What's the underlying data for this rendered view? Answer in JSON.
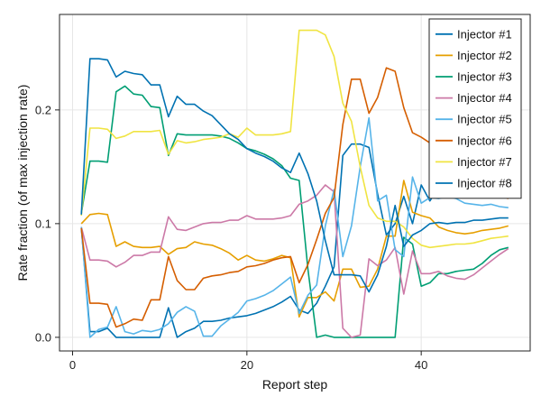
{
  "chart_data": {
    "type": "line",
    "xlabel": "Report step",
    "ylabel": "Rate fraction (of max injection rate)",
    "xlim": [
      -1.5,
      52.5
    ],
    "ylim": [
      -0.012,
      0.284
    ],
    "xticks": [
      0,
      20,
      40
    ],
    "yticks": [
      0.0,
      0.1,
      0.2
    ],
    "ytick_labels": [
      "0.0",
      "0.1",
      "0.2"
    ],
    "grid": true,
    "legend": "top-right",
    "x": [
      1,
      2,
      3,
      4,
      5,
      6,
      7,
      8,
      9,
      10,
      11,
      12,
      13,
      14,
      15,
      16,
      17,
      18,
      19,
      20,
      21,
      22,
      23,
      24,
      25,
      26,
      27,
      28,
      29,
      30,
      31,
      32,
      33,
      34,
      35,
      36,
      37,
      38,
      39,
      40,
      41,
      42,
      43,
      44,
      45,
      46,
      47,
      48,
      49,
      50
    ],
    "series": [
      {
        "name": "Injector #1",
        "color": "#0072B2",
        "values": [
          0.096,
          0.005,
          0.005,
          0.008,
          0.0,
          0.0,
          0.0,
          0.0,
          0.0,
          0.0,
          0.026,
          0.0,
          0.005,
          0.008,
          0.014,
          0.014,
          0.015,
          0.017,
          0.018,
          0.019,
          0.021,
          0.024,
          0.027,
          0.031,
          0.036,
          0.024,
          0.021,
          0.03,
          0.045,
          0.062,
          0.16,
          0.17,
          0.17,
          0.167,
          0.126,
          0.09,
          0.1,
          0.124,
          0.1,
          0.134,
          0.12,
          0.132,
          0.132,
          0.132,
          0.132,
          0.133,
          0.133,
          0.133,
          0.133,
          0.133
        ]
      },
      {
        "name": "Injector #2",
        "color": "#E69F00",
        "values": [
          0.1,
          0.108,
          0.109,
          0.108,
          0.08,
          0.084,
          0.08,
          0.079,
          0.079,
          0.08,
          0.073,
          0.078,
          0.079,
          0.084,
          0.082,
          0.081,
          0.078,
          0.074,
          0.068,
          0.072,
          0.068,
          0.067,
          0.069,
          0.072,
          0.07,
          0.018,
          0.035,
          0.035,
          0.04,
          0.032,
          0.06,
          0.06,
          0.044,
          0.045,
          0.06,
          0.089,
          0.089,
          0.138,
          0.11,
          0.107,
          0.105,
          0.097,
          0.094,
          0.092,
          0.091,
          0.092,
          0.094,
          0.095,
          0.096,
          0.098
        ]
      },
      {
        "name": "Injector #3",
        "color": "#009E73",
        "values": [
          0.109,
          0.155,
          0.155,
          0.154,
          0.216,
          0.221,
          0.214,
          0.213,
          0.203,
          0.202,
          0.16,
          0.179,
          0.178,
          0.178,
          0.178,
          0.178,
          0.177,
          0.175,
          0.171,
          0.166,
          0.164,
          0.161,
          0.157,
          0.151,
          0.14,
          0.138,
          0.06,
          0.0,
          0.002,
          0.0,
          0.0,
          0.0,
          0.0,
          0.0,
          0.0,
          0.0,
          0.0,
          0.088,
          0.082,
          0.045,
          0.048,
          0.056,
          0.056,
          0.058,
          0.059,
          0.06,
          0.065,
          0.072,
          0.077,
          0.079
        ]
      },
      {
        "name": "Injector #4",
        "color": "#CC79A7",
        "values": [
          0.097,
          0.068,
          0.068,
          0.067,
          0.062,
          0.066,
          0.072,
          0.072,
          0.075,
          0.075,
          0.106,
          0.095,
          0.094,
          0.097,
          0.1,
          0.101,
          0.101,
          0.103,
          0.103,
          0.107,
          0.104,
          0.104,
          0.104,
          0.105,
          0.107,
          0.117,
          0.12,
          0.125,
          0.134,
          0.128,
          0.008,
          0.0,
          0.002,
          0.069,
          0.063,
          0.068,
          0.079,
          0.038,
          0.076,
          0.056,
          0.056,
          0.058,
          0.054,
          0.052,
          0.051,
          0.055,
          0.061,
          0.067,
          0.073,
          0.078
        ]
      },
      {
        "name": "Injector #5",
        "color": "#56B4E9",
        "values": [
          0.097,
          0.0,
          0.007,
          0.009,
          0.027,
          0.005,
          0.003,
          0.006,
          0.005,
          0.007,
          0.012,
          0.022,
          0.027,
          0.023,
          0.001,
          0.001,
          0.01,
          0.016,
          0.022,
          0.032,
          0.034,
          0.037,
          0.041,
          0.047,
          0.053,
          0.021,
          0.037,
          0.046,
          0.098,
          0.13,
          0.071,
          0.098,
          0.15,
          0.193,
          0.12,
          0.125,
          0.077,
          0.071,
          0.141,
          0.118,
          0.123,
          0.122,
          0.124,
          0.122,
          0.118,
          0.117,
          0.116,
          0.117,
          0.115,
          0.114
        ]
      },
      {
        "name": "Injector #6",
        "color": "#D55E00",
        "values": [
          0.096,
          0.03,
          0.03,
          0.029,
          0.009,
          0.012,
          0.016,
          0.015,
          0.033,
          0.033,
          0.071,
          0.05,
          0.042,
          0.042,
          0.052,
          0.054,
          0.055,
          0.057,
          0.058,
          0.062,
          0.063,
          0.065,
          0.068,
          0.07,
          0.071,
          0.048,
          0.064,
          0.086,
          0.109,
          0.123,
          0.187,
          0.227,
          0.227,
          0.197,
          0.211,
          0.237,
          0.234,
          0.202,
          0.18,
          0.176,
          0.171,
          0.167,
          0.158,
          0.152,
          0.144,
          0.138,
          0.132,
          0.128,
          0.125,
          0.122
        ]
      },
      {
        "name": "Injector #7",
        "color": "#F0E442",
        "values": [
          0.107,
          0.184,
          0.184,
          0.183,
          0.175,
          0.177,
          0.181,
          0.181,
          0.181,
          0.182,
          0.161,
          0.173,
          0.171,
          0.172,
          0.174,
          0.175,
          0.176,
          0.179,
          0.176,
          0.184,
          0.178,
          0.178,
          0.178,
          0.179,
          0.181,
          0.27,
          0.27,
          0.27,
          0.266,
          0.247,
          0.206,
          0.19,
          0.15,
          0.116,
          0.105,
          0.102,
          0.102,
          0.097,
          0.087,
          0.081,
          0.079,
          0.08,
          0.081,
          0.082,
          0.082,
          0.083,
          0.085,
          0.087,
          0.088,
          0.089
        ]
      },
      {
        "name": "Injector #8",
        "color": "#0072B2",
        "values": [
          0.108,
          0.245,
          0.245,
          0.244,
          0.229,
          0.234,
          0.232,
          0.231,
          0.222,
          0.222,
          0.194,
          0.212,
          0.205,
          0.205,
          0.199,
          0.195,
          0.187,
          0.179,
          0.174,
          0.166,
          0.162,
          0.159,
          0.155,
          0.149,
          0.145,
          0.162,
          0.144,
          0.12,
          0.085,
          0.055,
          0.055,
          0.055,
          0.054,
          0.04,
          0.055,
          0.08,
          0.116,
          0.08,
          0.09,
          0.094,
          0.1,
          0.101,
          0.1,
          0.101,
          0.101,
          0.103,
          0.103,
          0.104,
          0.105,
          0.105
        ]
      }
    ]
  }
}
